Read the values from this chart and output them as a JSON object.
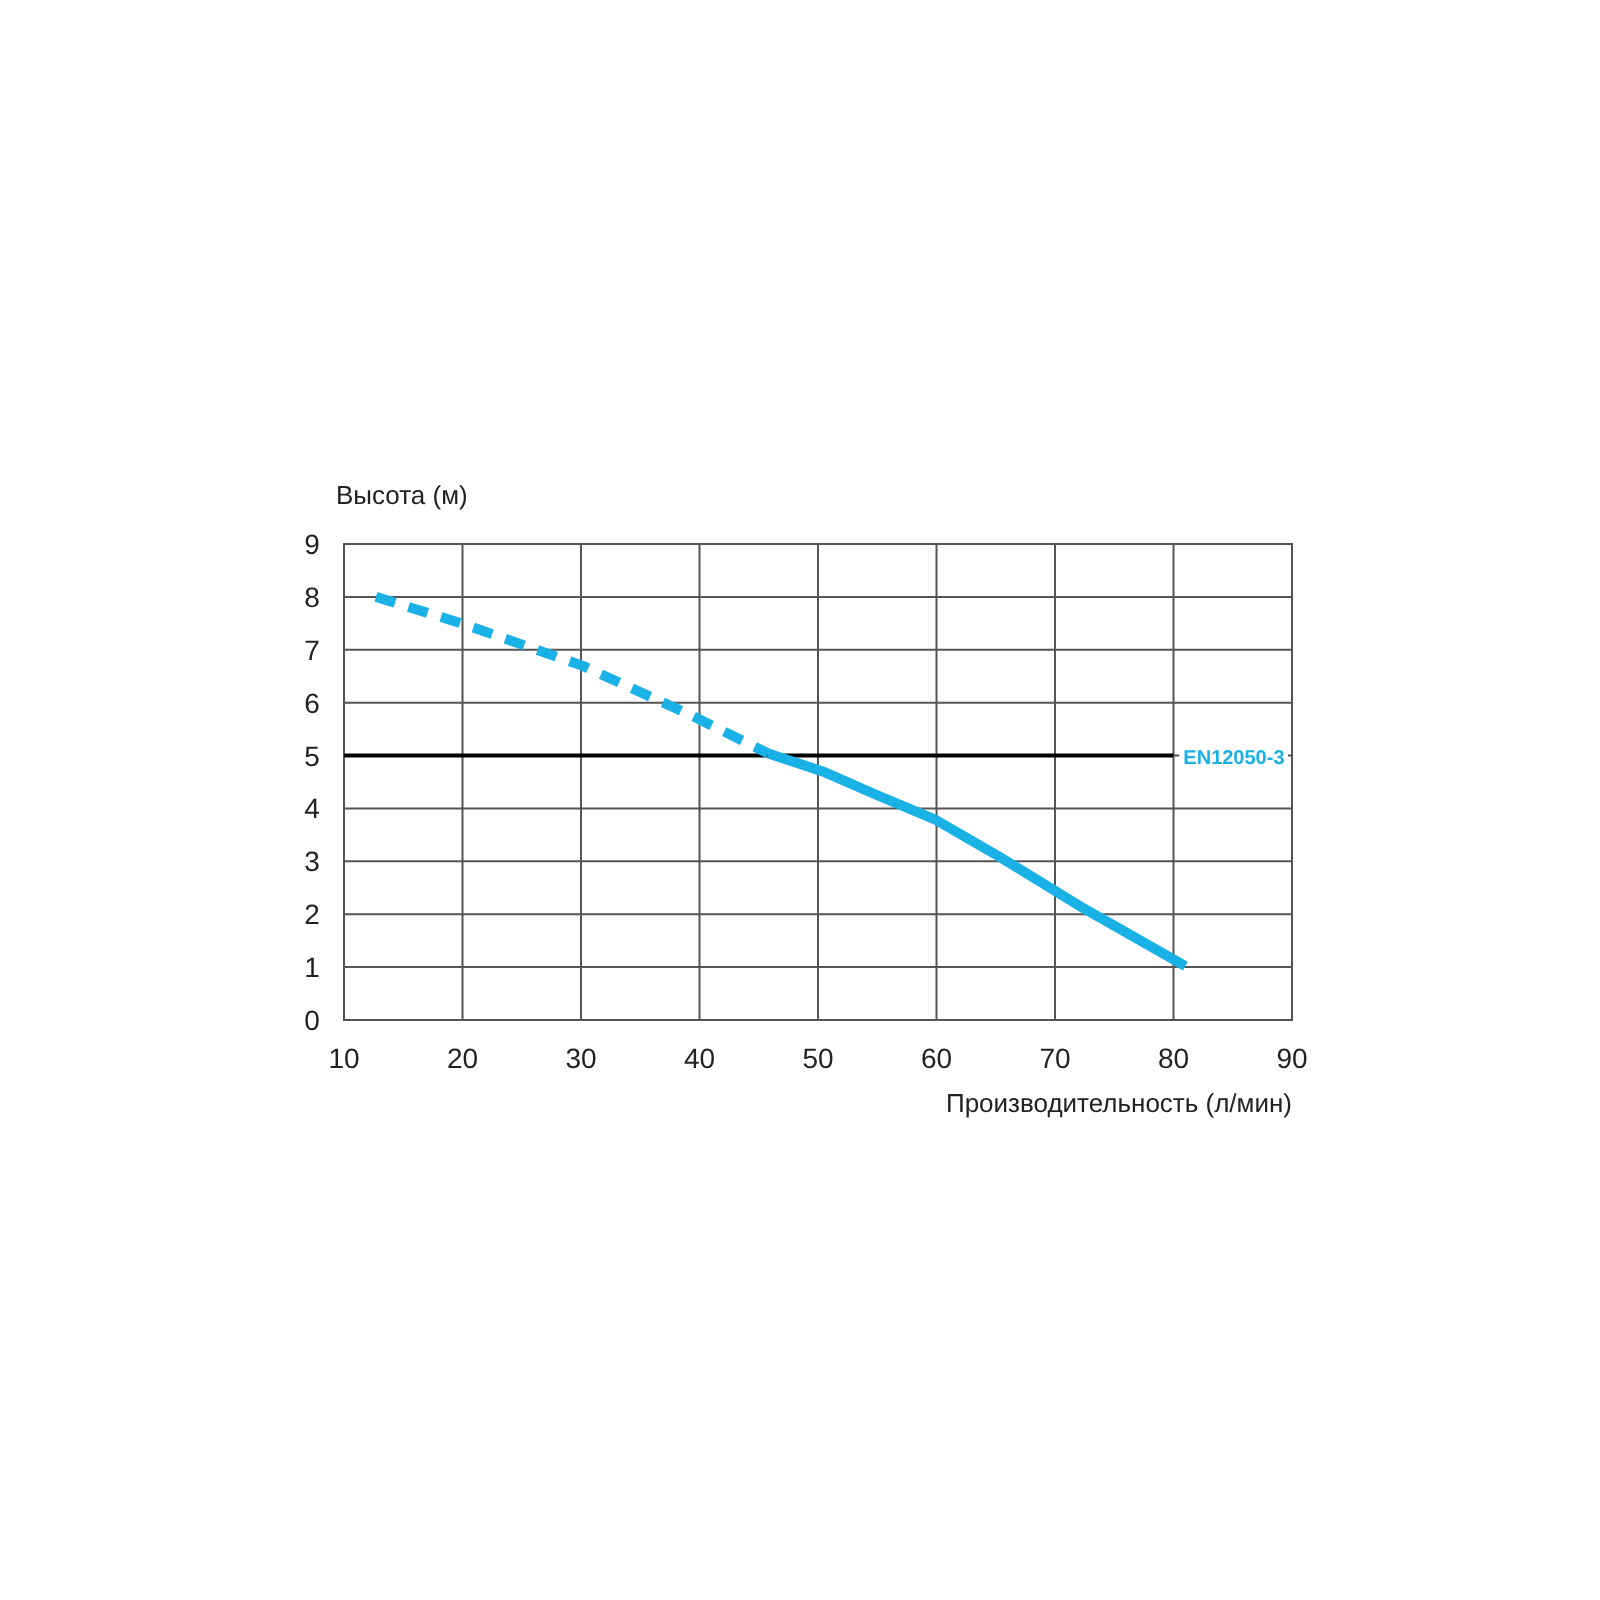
{
  "chart_data": {
    "type": "line",
    "xlabel": "Производительность (л/мин)",
    "ylabel": "Высота (м)",
    "xlim": [
      10,
      90
    ],
    "xticks": [
      10,
      20,
      30,
      40,
      50,
      60,
      70,
      80,
      90
    ],
    "ylim": [
      0,
      9
    ],
    "yticks": [
      0,
      1,
      2,
      3,
      4,
      5,
      6,
      7,
      8,
      9
    ],
    "grid": true,
    "marker": "none",
    "series": [
      {
        "color": "#1ab2e6",
        "line_style": "dashed",
        "x": [
          12.7,
          19.9,
          30.1,
          39.4,
          45.8
        ],
        "values": [
          8.0,
          7.5,
          6.7,
          5.75,
          5.04
        ]
      },
      {
        "color": "#1ab2e6",
        "line_style": "solid",
        "x": [
          45.8,
          50.4,
          55,
          59.8,
          65.2,
          72.5,
          81
        ],
        "values": [
          5.04,
          4.7,
          4.25,
          3.8,
          3.1,
          2.1,
          1.02
        ]
      }
    ],
    "ref_lines": [
      {
        "axis": "y",
        "value": 5,
        "label": "EN12050-3",
        "color": "#000000"
      }
    ]
  }
}
